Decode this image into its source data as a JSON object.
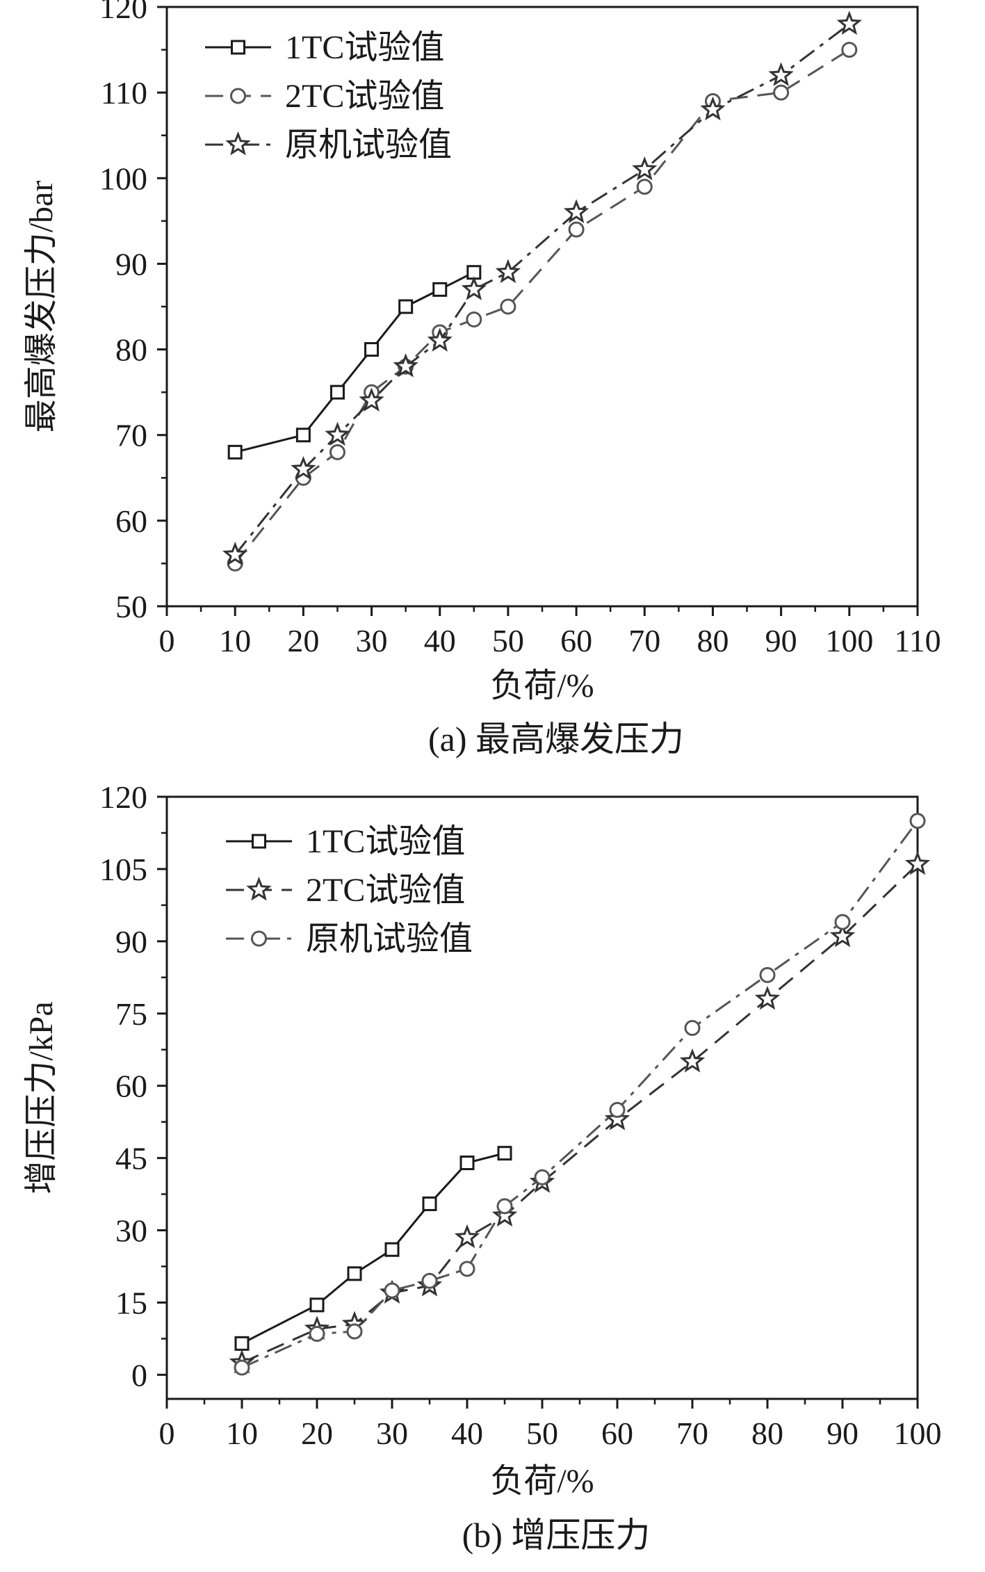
{
  "chart_data": [
    {
      "id": "a",
      "type": "line",
      "caption": "(a) 最高爆发压力",
      "xlabel": "负荷/%",
      "ylabel": "最高爆发压力/bar",
      "xlim": [
        0,
        110
      ],
      "ylim": [
        50,
        120
      ],
      "xticks": [
        0,
        10,
        20,
        30,
        40,
        50,
        60,
        70,
        80,
        90,
        100,
        110
      ],
      "yticks": [
        50,
        60,
        70,
        80,
        90,
        100,
        110,
        120
      ],
      "legend_position": "top-left",
      "series": [
        {
          "name": "1TC试验值",
          "marker": "square",
          "dash": "solid",
          "color": "#1a1a1a",
          "x": [
            10,
            20,
            25,
            30,
            35,
            40,
            45
          ],
          "y": [
            68,
            70,
            75,
            80,
            85,
            87,
            89
          ]
        },
        {
          "name": "2TC试验值",
          "marker": "circle",
          "dash": "dash",
          "color": "#555555",
          "x": [
            10,
            20,
            25,
            30,
            35,
            40,
            45,
            50,
            60,
            70,
            80,
            90,
            100
          ],
          "y": [
            55,
            65,
            68,
            75,
            78,
            82,
            83.5,
            85,
            94,
            99,
            109,
            110,
            115
          ]
        },
        {
          "name": "原机试验值",
          "marker": "star",
          "dash": "dashdot",
          "color": "#333333",
          "x": [
            10,
            20,
            25,
            30,
            35,
            40,
            45,
            50,
            60,
            70,
            80,
            90,
            100
          ],
          "y": [
            56,
            66,
            70,
            74,
            78,
            81,
            87,
            89,
            96,
            101,
            108,
            112,
            118
          ]
        }
      ]
    },
    {
      "id": "b",
      "type": "line",
      "caption": "(b) 增压压力",
      "xlabel": "负荷/%",
      "ylabel": "增压压力/kPa",
      "xlim": [
        0,
        100
      ],
      "ylim": [
        -5,
        120
      ],
      "xticks": [
        0,
        10,
        20,
        30,
        40,
        50,
        60,
        70,
        80,
        90,
        100
      ],
      "yticks": [
        0,
        15,
        30,
        45,
        60,
        75,
        90,
        105,
        120
      ],
      "legend_position": "top-left",
      "series": [
        {
          "name": "1TC试验值",
          "marker": "square",
          "dash": "solid",
          "color": "#1a1a1a",
          "x": [
            10,
            20,
            25,
            30,
            35,
            40,
            45
          ],
          "y": [
            6.5,
            14.5,
            21,
            26,
            35.5,
            44,
            46
          ]
        },
        {
          "name": "2TC试验值",
          "marker": "star",
          "dash": "dash",
          "color": "#333333",
          "x": [
            10,
            20,
            25,
            30,
            35,
            40,
            45,
            50,
            60,
            70,
            80,
            90,
            100
          ],
          "y": [
            2.5,
            9.5,
            10.5,
            17,
            18.5,
            28.5,
            33,
            40,
            53,
            65,
            78,
            91,
            106
          ]
        },
        {
          "name": "原机试验值",
          "marker": "circle",
          "dash": "dashdot",
          "color": "#555555",
          "x": [
            10,
            20,
            25,
            30,
            35,
            40,
            45,
            50,
            60,
            70,
            80,
            90,
            100
          ],
          "y": [
            1.5,
            8.5,
            9,
            17.5,
            19.5,
            22,
            35,
            41,
            55,
            72,
            83,
            94,
            115
          ]
        }
      ]
    }
  ]
}
